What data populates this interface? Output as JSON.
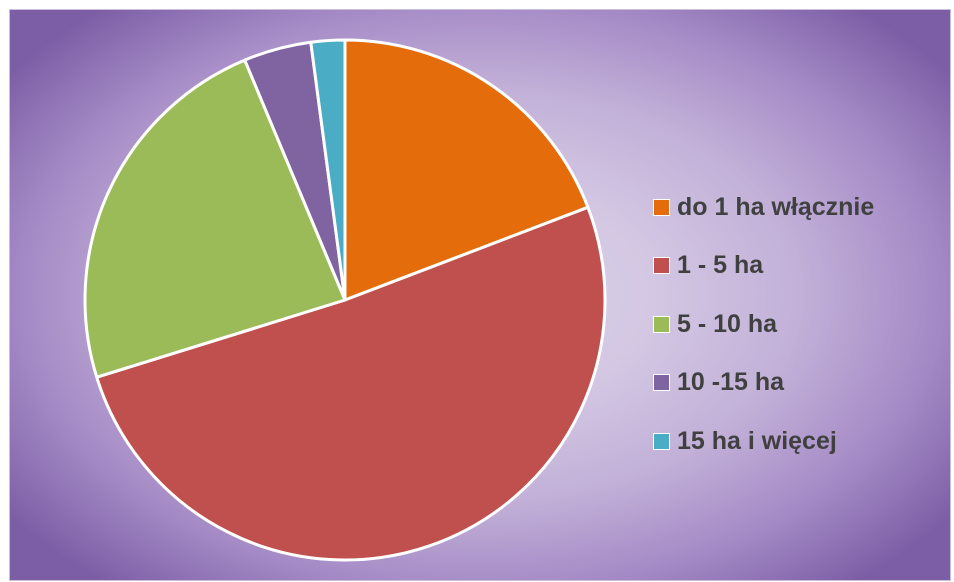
{
  "chart_data": {
    "type": "pie",
    "categories": [
      "do 1 ha włącznie",
      "1 - 5 ha",
      "5 - 10 ha",
      "10 -15 ha",
      "15 ha i więcej"
    ],
    "values": [
      19.2,
      51.0,
      23.5,
      4.2,
      2.1
    ],
    "unit": "%",
    "colors": [
      "#e46c0a",
      "#c0504d",
      "#9bbb59",
      "#8064a2",
      "#4bacc6"
    ],
    "start_angle_deg": 0,
    "direction": "clockwise",
    "legend": "right",
    "title": ""
  }
}
